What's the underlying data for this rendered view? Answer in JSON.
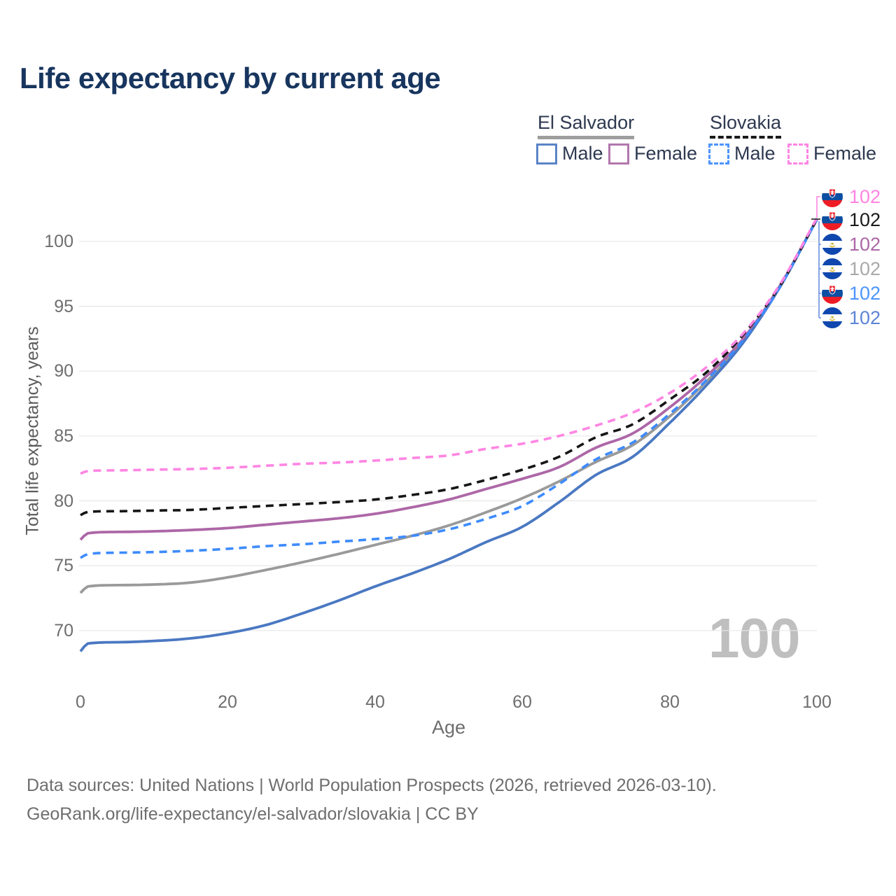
{
  "title": "Life expectancy by current age",
  "legend": {
    "groups": [
      {
        "country": "El Salvador",
        "line_style": "solid",
        "items": [
          {
            "label": "Male",
            "color": "#4a78c2"
          },
          {
            "label": "Female",
            "color": "#b277ae"
          }
        ]
      },
      {
        "country": "Slovakia",
        "line_style": "dashed",
        "items": [
          {
            "label": "Male",
            "color": "#4d94ff"
          },
          {
            "label": "Female",
            "color": "#ff85e3"
          }
        ]
      }
    ]
  },
  "chart_data": {
    "type": "line",
    "title": "Life expectancy by current age",
    "xlabel": "Age",
    "ylabel": "Total life expectancy, years",
    "xticks": [
      0,
      20,
      40,
      60,
      80,
      100
    ],
    "yticks": [
      70,
      75,
      80,
      85,
      90,
      95,
      100
    ],
    "xlim": [
      0,
      100
    ],
    "ylim": [
      67,
      103
    ],
    "grid": true,
    "legend_position": "top-right",
    "x": [
      0,
      1,
      5,
      10,
      15,
      20,
      25,
      30,
      35,
      40,
      45,
      50,
      55,
      60,
      65,
      70,
      75,
      80,
      85,
      90,
      95,
      100
    ],
    "series": [
      {
        "name": "El Salvador Both sexes",
        "country": "El Salvador",
        "sex": "both",
        "color": "#9a9a9a",
        "dash": "solid",
        "values": [
          72.9,
          73.4,
          73.5,
          73.55,
          73.7,
          74.1,
          74.65,
          75.25,
          75.9,
          76.6,
          77.3,
          78.1,
          79.1,
          80.2,
          81.5,
          83.0,
          84.3,
          86.5,
          89.2,
          92.3,
          96.5,
          101.7
        ]
      },
      {
        "name": "El Salvador Female",
        "country": "El Salvador",
        "sex": "female",
        "color": "#ad67a7",
        "dash": "solid",
        "values": [
          77.0,
          77.5,
          77.6,
          77.65,
          77.75,
          77.9,
          78.15,
          78.4,
          78.65,
          79.0,
          79.5,
          80.1,
          80.9,
          81.7,
          82.6,
          84.1,
          85.2,
          87.2,
          89.6,
          92.5,
          96.6,
          101.7
        ]
      },
      {
        "name": "El Salvador Male",
        "country": "El Salvador",
        "sex": "male",
        "color": "#4a78c2",
        "dash": "solid",
        "values": [
          68.4,
          69.0,
          69.1,
          69.2,
          69.4,
          69.8,
          70.4,
          71.3,
          72.3,
          73.4,
          74.4,
          75.5,
          76.8,
          78.0,
          79.9,
          82.0,
          83.4,
          86.0,
          88.9,
          92.2,
          96.5,
          101.7
        ]
      },
      {
        "name": "Slovakia Both sexes",
        "country": "Slovakia",
        "sex": "both",
        "color": "#161616",
        "dash": "dashed",
        "values": [
          78.9,
          79.15,
          79.2,
          79.25,
          79.3,
          79.45,
          79.6,
          79.75,
          79.9,
          80.1,
          80.45,
          80.9,
          81.6,
          82.4,
          83.4,
          84.9,
          85.9,
          87.8,
          89.9,
          92.8,
          96.6,
          101.7
        ]
      },
      {
        "name": "Slovakia Male",
        "country": "Slovakia",
        "sex": "male",
        "color": "#3d8bfd",
        "dash": "dashed",
        "values": [
          75.6,
          75.9,
          76.0,
          76.05,
          76.15,
          76.3,
          76.5,
          76.65,
          76.85,
          77.05,
          77.3,
          77.8,
          78.6,
          79.6,
          81.3,
          83.2,
          84.5,
          86.7,
          89.3,
          92.4,
          96.5,
          101.7
        ]
      },
      {
        "name": "Slovakia Female",
        "country": "Slovakia",
        "sex": "female",
        "color": "#ff85e3",
        "dash": "dashed",
        "values": [
          82.1,
          82.3,
          82.35,
          82.4,
          82.45,
          82.55,
          82.7,
          82.85,
          82.95,
          83.1,
          83.3,
          83.5,
          84.0,
          84.4,
          85.0,
          85.8,
          86.8,
          88.3,
          90.3,
          92.9,
          96.7,
          101.8
        ]
      }
    ],
    "end_labels": [
      {
        "flag": "slovakia",
        "value": "102",
        "color": "#ff85e3"
      },
      {
        "flag": "slovakia",
        "value": "102",
        "color": "#1a1a1a"
      },
      {
        "flag": "el-salvador",
        "value": "102",
        "color": "#ad67a7"
      },
      {
        "flag": "el-salvador",
        "value": "102",
        "color": "#a9a9a9"
      },
      {
        "flag": "slovakia",
        "value": "102",
        "color": "#4d94ff"
      },
      {
        "flag": "el-salvador",
        "value": "102",
        "color": "#5c85d6"
      }
    ],
    "watermark": "100",
    "grid_color": "#e7e7e7"
  },
  "footer": {
    "line1": "Data sources: United Nations | World Population Prospects (2026, retrieved 2026-03-10).",
    "line2": "GeoRank.org/life-expectancy/el-salvador/slovakia | CC BY"
  }
}
